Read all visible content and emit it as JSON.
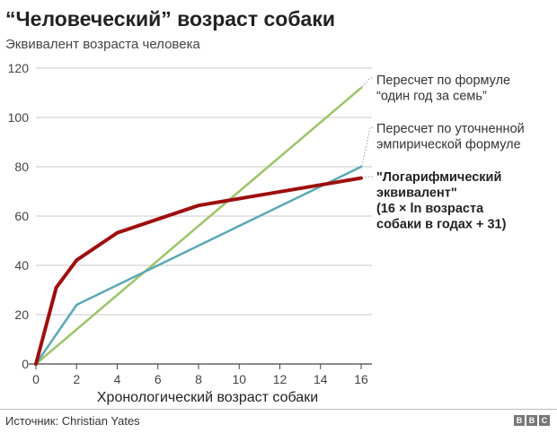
{
  "title": "“Человеческий” возраст собаки",
  "subtitle": "Эквивалент возраста человека",
  "source": "Источник: Christian Yates",
  "logo_letters": [
    "B",
    "B",
    "C"
  ],
  "colors": {
    "seven_years": "#9dc46a",
    "empirical": "#5aa8b5",
    "log": "#9e0f0f",
    "grid": "#c8c8c8",
    "axis": "#444444"
  },
  "chart_data": {
    "type": "line",
    "title": "“Человеческий” возраст собаки",
    "subtitle": "Эквивалент возраста человека",
    "xlabel": "Хронологический возраст собаки",
    "ylabel": "",
    "xlim": [
      0,
      16
    ],
    "ylim": [
      0,
      120
    ],
    "xticks": [
      0,
      2,
      4,
      6,
      8,
      10,
      12,
      14,
      16
    ],
    "yticks": [
      0,
      20,
      40,
      60,
      80,
      100,
      120
    ],
    "grid": "horizontal",
    "legend": "right",
    "series": [
      {
        "key": "seven_years",
        "name": "Пересчет по формуле “один год за семь”",
        "label_lines": [
          "Пересчет по формуле",
          "“один год за семь”"
        ],
        "color": "#9dc46a",
        "x": [
          0,
          16
        ],
        "y": [
          0,
          112
        ]
      },
      {
        "key": "empirical",
        "name": "Пересчет по уточненной эмпирической формуле",
        "label_lines": [
          "Пересчет по уточненной",
          "эмпирической формуле"
        ],
        "color": "#5aa8b5",
        "x": [
          0,
          2,
          16
        ],
        "y": [
          0,
          24,
          80
        ]
      },
      {
        "key": "log",
        "name": "\"Логарифмический эквивалент\" (16 × ln возраста собаки в годах + 31)",
        "label_lines": [
          "\"Логарифмический",
          "эквивалент\"",
          "(16 × ln возраста",
          "собаки в годах + 31)"
        ],
        "color": "#9e0f0f",
        "bold": true,
        "x": [
          0,
          1,
          2,
          4,
          8,
          16
        ],
        "y": [
          0,
          31,
          42.1,
          53.2,
          64.3,
          75.4
        ]
      }
    ]
  }
}
